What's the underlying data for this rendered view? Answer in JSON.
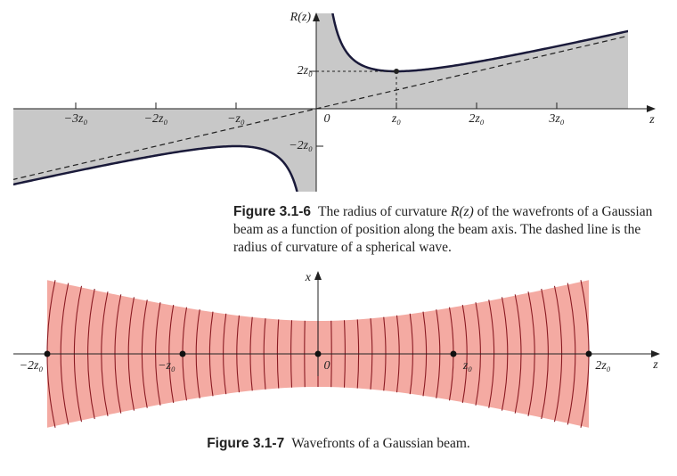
{
  "figure_1": {
    "y_axis_label": "R(z)",
    "x_axis_label": "z",
    "z_tick_labels": [
      "−3z₀",
      "−2z₀",
      "−z₀",
      "0",
      "z₀",
      "2z₀",
      "3z₀"
    ],
    "r_tick_labels": [
      "2z₀",
      "−2z₀"
    ],
    "caption": {
      "number": "Figure 3.1-6",
      "text_before": "The radius of curvature",
      "math": "R(z)",
      "text_after": "of the wavefronts of a Gaussian beam as a function of position along the beam axis. The dashed line is the radius of curvature of a spherical wave."
    }
  },
  "figure_2": {
    "x_axis_label": "x",
    "z_axis_label": "z",
    "z_tick_labels": [
      "−2z₀",
      "−z₀",
      "0",
      "z₀",
      "2z₀"
    ],
    "caption": {
      "number": "Figure 3.1-7",
      "text": "Wavefronts of a Gaussian beam."
    }
  }
}
